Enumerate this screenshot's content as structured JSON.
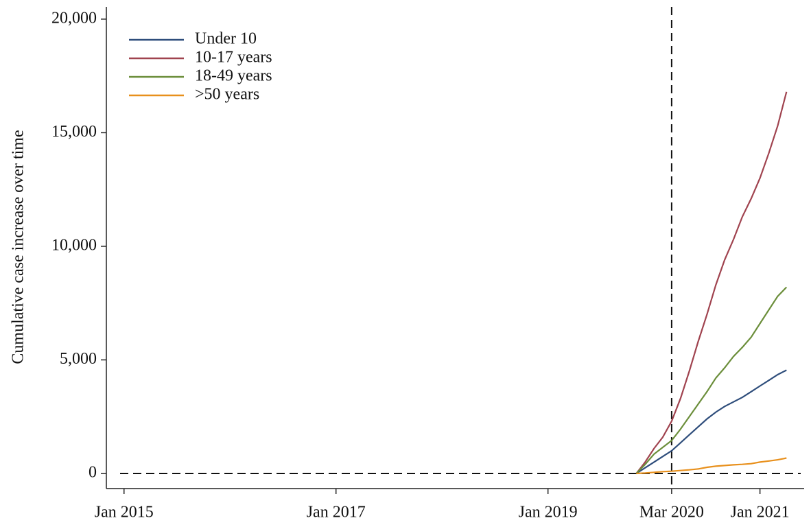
{
  "chart_data": {
    "type": "line",
    "y_label": "Cumulative case increase over time",
    "x": [
      "2019-11",
      "2019-12",
      "2020-01",
      "2020-02",
      "2020-03",
      "2020-04",
      "2020-05",
      "2020-06",
      "2020-07",
      "2020-08",
      "2020-09",
      "2020-10",
      "2020-11",
      "2020-12",
      "2021-01",
      "2021-02",
      "2021-03",
      "2021-04"
    ],
    "series": [
      {
        "name": "Under 10",
        "color": "#2e4d7b",
        "values": [
          0,
          250,
          500,
          750,
          1000,
          1350,
          1700,
          2050,
          2400,
          2700,
          2950,
          3150,
          3350,
          3600,
          3850,
          4100,
          4350,
          4550
        ]
      },
      {
        "name": "10-17 years",
        "color": "#a0434f",
        "values": [
          0,
          500,
          1100,
          1600,
          2300,
          3300,
          4500,
          5800,
          7000,
          8300,
          9400,
          10300,
          11300,
          12100,
          13000,
          14100,
          15300,
          16800
        ]
      },
      {
        "name": "18-49 years",
        "color": "#6b8e3a",
        "values": [
          0,
          400,
          850,
          1150,
          1450,
          1950,
          2500,
          3050,
          3600,
          4200,
          4650,
          5150,
          5550,
          6000,
          6600,
          7200,
          7800,
          8200
        ]
      },
      {
        "name": ">50 years",
        "color": "#e8901c",
        "values": [
          0,
          20,
          50,
          80,
          100,
          130,
          160,
          200,
          270,
          320,
          350,
          380,
          400,
          430,
          500,
          550,
          600,
          680
        ]
      }
    ],
    "xlim": [
      "2014-11",
      "2021-06"
    ],
    "xticks": [
      {
        "value": "2015-01",
        "label": "Jan 2015"
      },
      {
        "value": "2017-01",
        "label": "Jan 2017"
      },
      {
        "value": "2019-01",
        "label": "Jan 2019"
      },
      {
        "value": "2020-03",
        "label": "Mar 2020"
      },
      {
        "value": "2021-01",
        "label": "Jan 2021"
      }
    ],
    "ylim": [
      -665,
      20540
    ],
    "yticks": [
      0,
      {
        "value": 5000,
        "label": "5,000"
      },
      {
        "value": 10000,
        "label": "10,000"
      },
      {
        "value": 15000,
        "label": "15,000"
      },
      {
        "value": 20000,
        "label": "20,000"
      }
    ],
    "reference_lines": {
      "x": "2020-03",
      "y": 0
    },
    "legend": "top-left"
  }
}
